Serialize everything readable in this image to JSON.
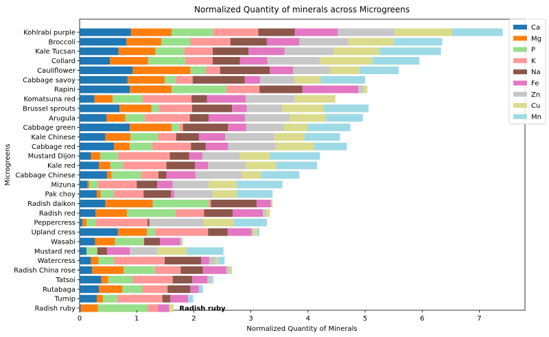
{
  "chart_data": {
    "type": "bar",
    "orientation": "horizontal",
    "stacked": true,
    "title": "Normalized Quantity of minerals across Microgreens",
    "xlabel": "Normalized Quantity of Minerals",
    "ylabel": "Microgreens",
    "xlim": [
      0,
      7.8
    ],
    "xticks": [
      "0",
      "1",
      "2",
      "3",
      "4",
      "5",
      "6",
      "7"
    ],
    "grid": false,
    "legend_position": "top-right",
    "annotation": {
      "category": "Radish ruby",
      "text": "Radish ruby"
    },
    "categories": [
      "Kohlrabi purple",
      "Broccoli",
      "Kale Tucsan",
      "Collard",
      "Cauliflower",
      "Cabbage savoy",
      "Rapini",
      "Komatsuna red",
      "Brussel sprouts",
      "Arugula",
      "Cabbage green",
      "Kale Chinese",
      "Cabbage red",
      "Mustard Dijon",
      "Kale red",
      "Cabbage Chinese",
      "Mizuna",
      "Pak choy",
      "Radish daikon",
      "Radish red",
      "Peppercress",
      "Upland cress",
      "Wasabi",
      "Mustard red",
      "Watercress",
      "Radish China rose",
      "Tatsoi",
      "Rutabaga",
      "Turnip",
      "Radish ruby"
    ],
    "series": [
      {
        "name": "Ca",
        "color": "#1f77b4",
        "values": [
          0.9,
          0.82,
          0.68,
          0.53,
          0.93,
          0.84,
          0.88,
          0.26,
          0.7,
          0.47,
          0.88,
          0.45,
          0.6,
          0.2,
          0.34,
          0.48,
          0.14,
          0.3,
          0.45,
          0.28,
          0.05,
          0.67,
          0.27,
          0.12,
          0.2,
          0.22,
          0.38,
          0.34,
          0.3,
          0.02
        ]
      },
      {
        "name": "Mg",
        "color": "#ff7f0e",
        "values": [
          0.71,
          0.61,
          0.65,
          0.67,
          1.01,
          0.65,
          0.73,
          0.32,
          0.56,
          0.33,
          0.73,
          0.44,
          0.28,
          0.16,
          0.2,
          0.08,
          0.03,
          0.07,
          0.83,
          0.55,
          0.07,
          0.51,
          0.35,
          0.0,
          0.13,
          0.55,
          0.12,
          0.41,
          0.11,
          0.3
        ]
      },
      {
        "name": "P",
        "color": "#98df8a",
        "values": [
          0.73,
          0.51,
          0.5,
          0.65,
          0.27,
          0.19,
          0.96,
          0.52,
          0.13,
          0.34,
          0.14,
          0.48,
          0.39,
          0.31,
          0.22,
          0.52,
          0.15,
          0.23,
          0.98,
          0.85,
          0.17,
          0.14,
          0.5,
          0.19,
          0.27,
          0.55,
          0.43,
          0.35,
          0.25,
          0.87
        ]
      },
      {
        "name": "K",
        "color": "#ff9896",
        "values": [
          0.79,
          0.7,
          0.5,
          0.48,
          0.25,
          0.3,
          0.58,
          0.86,
          0.58,
          0.79,
          0.06,
          0.32,
          0.68,
          0.91,
          0.76,
          0.3,
          0.68,
          0.52,
          0.04,
          0.5,
          0.9,
          0.93,
          0.01,
          0.0,
          0.89,
          0.45,
          0.7,
          0.44,
          0.79,
          0.18
        ]
      },
      {
        "name": "Na",
        "color": "#8c564b",
        "values": [
          0.64,
          0.64,
          0.63,
          0.48,
          0.87,
          0.91,
          0.75,
          0.27,
          0.7,
          0.33,
          0.79,
          0.4,
          0.26,
          0.34,
          0.5,
          0.14,
          0.36,
          0.48,
          0.8,
          0.5,
          0.03,
          0.34,
          0.28,
          0.17,
          0.64,
          0.39,
          0.34,
          0.4,
          0.14,
          0.0
        ]
      },
      {
        "name": "Fe",
        "color": "#e377c2",
        "values": [
          0.75,
          0.57,
          0.63,
          0.48,
          0.41,
          0.27,
          0.98,
          0.68,
          0.26,
          0.64,
          0.32,
          0.46,
          0.39,
          0.23,
          0.23,
          0.51,
          0.27,
          0.06,
          0.25,
          0.53,
          0.0,
          0.42,
          0.35,
          0.4,
          0.14,
          0.41,
          0.27,
          0.15,
          0.31,
          0.2
        ]
      },
      {
        "name": "Zn",
        "color": "#c7c7c7",
        "values": [
          1.0,
          0.86,
          0.86,
          0.92,
          0.64,
          0.6,
          0.1,
          0.85,
          0.61,
          0.78,
          0.65,
          0.86,
          0.83,
          0.65,
          0.66,
          0.81,
          0.63,
          0.67,
          0.01,
          0.06,
          0.95,
          0.04,
          0.04,
          0.48,
          0.11,
          0.06,
          0.06,
          0.0,
          0.0,
          0.0
        ]
      },
      {
        "name": "Cu",
        "color": "#dbdb8d",
        "values": [
          1.0,
          0.79,
          0.8,
          0.92,
          0.52,
          0.46,
          0.06,
          0.72,
          0.74,
          0.63,
          0.42,
          0.53,
          0.68,
          0.53,
          0.53,
          0.34,
          0.49,
          0.42,
          0.02,
          0.06,
          0.53,
          0.06,
          0.01,
          0.52,
          0.04,
          0.04,
          0.0,
          0.0,
          0.0,
          0.08
        ]
      },
      {
        "name": "Mn",
        "color": "#9edae5",
        "values": [
          0.89,
          0.85,
          1.08,
          0.82,
          0.69,
          0.78,
          0.0,
          0.0,
          0.78,
          0.65,
          0.75,
          0.62,
          0.57,
          0.88,
          0.72,
          0.67,
          0.8,
          0.63,
          0.0,
          0.0,
          0.58,
          0.04,
          0.0,
          0.64,
          0.12,
          0.0,
          0.04,
          0.07,
          0.09,
          0.0
        ]
      }
    ]
  }
}
